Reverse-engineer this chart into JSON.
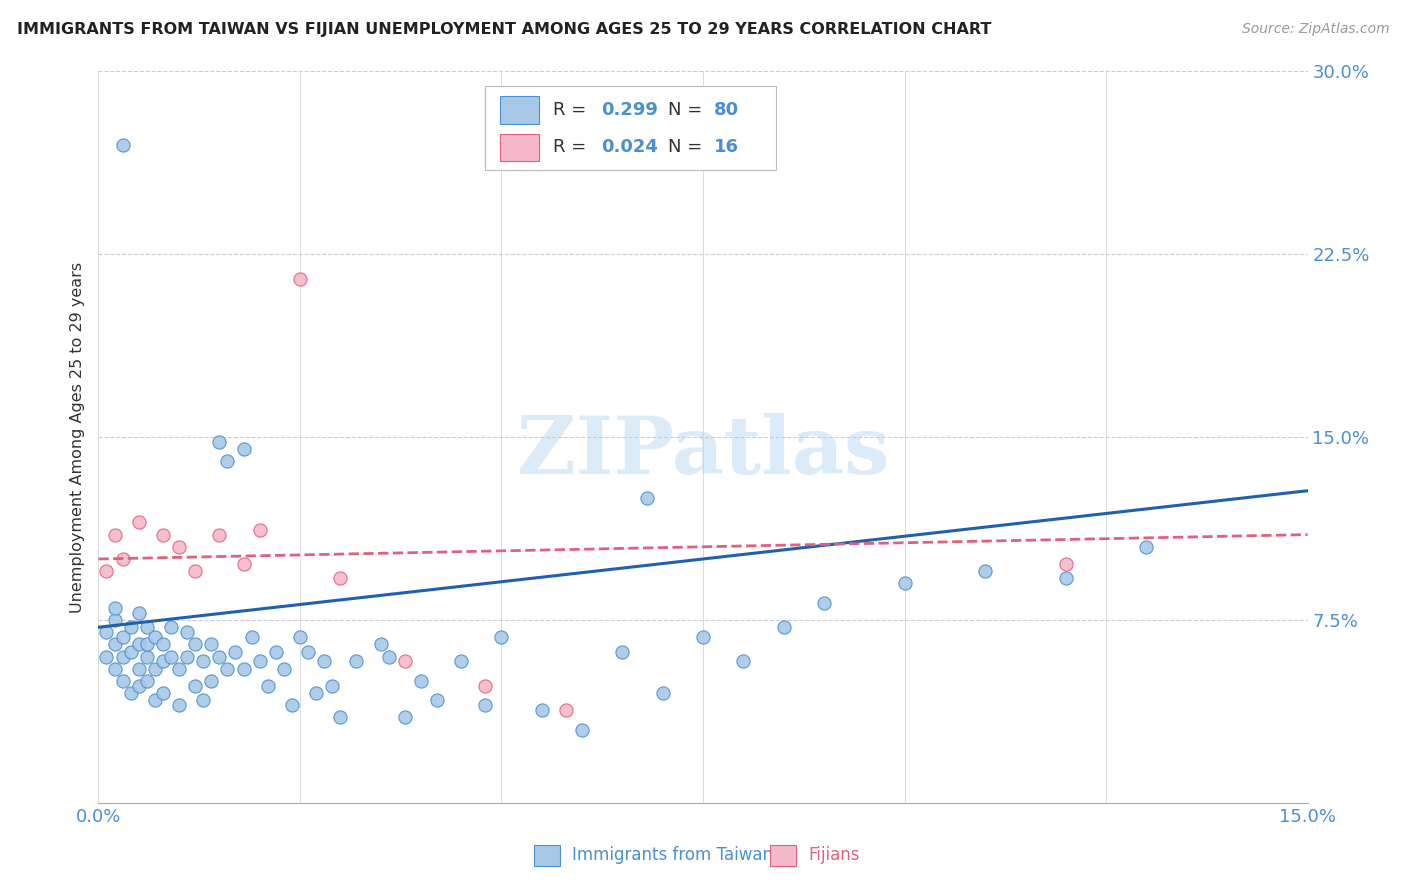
{
  "title": "IMMIGRANTS FROM TAIWAN VS FIJIAN UNEMPLOYMENT AMONG AGES 25 TO 29 YEARS CORRELATION CHART",
  "source": "Source: ZipAtlas.com",
  "ylabel": "Unemployment Among Ages 25 to 29 years",
  "xlim": [
    0.0,
    0.15
  ],
  "ylim": [
    0.0,
    0.3
  ],
  "ytick_vals": [
    0.075,
    0.15,
    0.225,
    0.3
  ],
  "ytick_labels": [
    "7.5%",
    "15.0%",
    "22.5%",
    "30.0%"
  ],
  "xtick_vals": [
    0.0,
    0.15
  ],
  "xtick_labels": [
    "0.0%",
    "15.0%"
  ],
  "blue_color": "#a8c8e8",
  "pink_color": "#f4b8c8",
  "blue_edge": "#4a90d0",
  "pink_edge": "#e06080",
  "blue_line_color": "#2060b0",
  "pink_line_color": "#d04070",
  "tick_color": "#4a90d0",
  "legend_R1": "0.299",
  "legend_N1": "80",
  "legend_R2": "0.024",
  "legend_N2": "16",
  "watermark": "ZIPatlas",
  "taiwan_x": [
    0.001,
    0.001,
    0.002,
    0.002,
    0.002,
    0.002,
    0.003,
    0.003,
    0.003,
    0.003,
    0.004,
    0.004,
    0.004,
    0.005,
    0.005,
    0.005,
    0.005,
    0.006,
    0.006,
    0.006,
    0.006,
    0.007,
    0.007,
    0.007,
    0.008,
    0.008,
    0.008,
    0.009,
    0.009,
    0.01,
    0.01,
    0.011,
    0.011,
    0.012,
    0.012,
    0.013,
    0.013,
    0.014,
    0.014,
    0.015,
    0.015,
    0.016,
    0.016,
    0.017,
    0.018,
    0.018,
    0.019,
    0.02,
    0.021,
    0.022,
    0.023,
    0.024,
    0.025,
    0.026,
    0.027,
    0.028,
    0.029,
    0.03,
    0.032,
    0.035,
    0.036,
    0.038,
    0.04,
    0.042,
    0.045,
    0.048,
    0.05,
    0.055,
    0.06,
    0.065,
    0.068,
    0.07,
    0.075,
    0.08,
    0.085,
    0.09,
    0.1,
    0.11,
    0.12,
    0.13
  ],
  "taiwan_y": [
    0.06,
    0.07,
    0.065,
    0.075,
    0.055,
    0.08,
    0.06,
    0.068,
    0.05,
    0.27,
    0.062,
    0.045,
    0.072,
    0.055,
    0.065,
    0.078,
    0.048,
    0.06,
    0.072,
    0.05,
    0.065,
    0.055,
    0.042,
    0.068,
    0.058,
    0.065,
    0.045,
    0.06,
    0.072,
    0.055,
    0.04,
    0.06,
    0.07,
    0.048,
    0.065,
    0.058,
    0.042,
    0.065,
    0.05,
    0.148,
    0.06,
    0.14,
    0.055,
    0.062,
    0.145,
    0.055,
    0.068,
    0.058,
    0.048,
    0.062,
    0.055,
    0.04,
    0.068,
    0.062,
    0.045,
    0.058,
    0.048,
    0.035,
    0.058,
    0.065,
    0.06,
    0.035,
    0.05,
    0.042,
    0.058,
    0.04,
    0.068,
    0.038,
    0.03,
    0.062,
    0.125,
    0.045,
    0.068,
    0.058,
    0.072,
    0.082,
    0.09,
    0.095,
    0.092,
    0.105
  ],
  "fijian_x": [
    0.001,
    0.002,
    0.003,
    0.005,
    0.008,
    0.01,
    0.012,
    0.015,
    0.018,
    0.02,
    0.025,
    0.03,
    0.038,
    0.048,
    0.058,
    0.12
  ],
  "fijian_y": [
    0.095,
    0.11,
    0.1,
    0.115,
    0.11,
    0.105,
    0.095,
    0.11,
    0.098,
    0.112,
    0.215,
    0.092,
    0.058,
    0.048,
    0.038,
    0.098
  ]
}
